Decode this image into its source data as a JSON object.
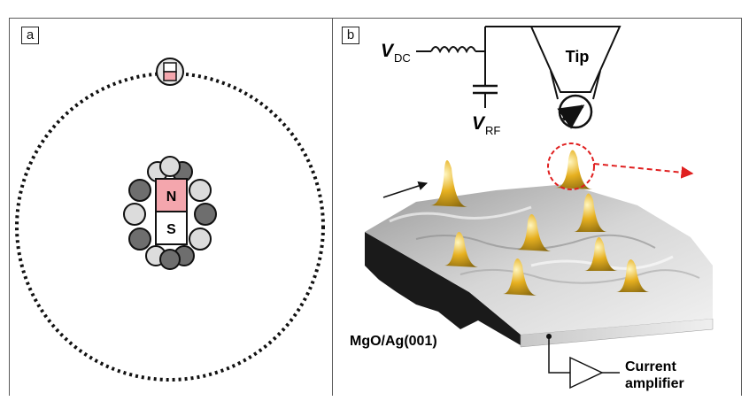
{
  "panels": [
    {
      "label": "a"
    },
    {
      "label": "b"
    }
  ],
  "atom": {
    "north_label": "N",
    "south_label": "S",
    "north_color": "#f4a6ad",
    "south_color": "#ffffff",
    "gray_lobe": "#6e6e6e",
    "light_lobe": "#dcdcdc"
  },
  "circuit": {
    "vdc_main": "V",
    "vdc_sub": "DC",
    "vrf_main": "V",
    "vrf_sub": "RF",
    "tip_label": "Tip"
  },
  "surface": {
    "substrate_label": "MgO/Ag(001)",
    "amplifier_label_line1": "Current",
    "amplifier_label_line2": "amplifier",
    "highlight_color": "#e02020",
    "peak_color": "#e6b020"
  }
}
